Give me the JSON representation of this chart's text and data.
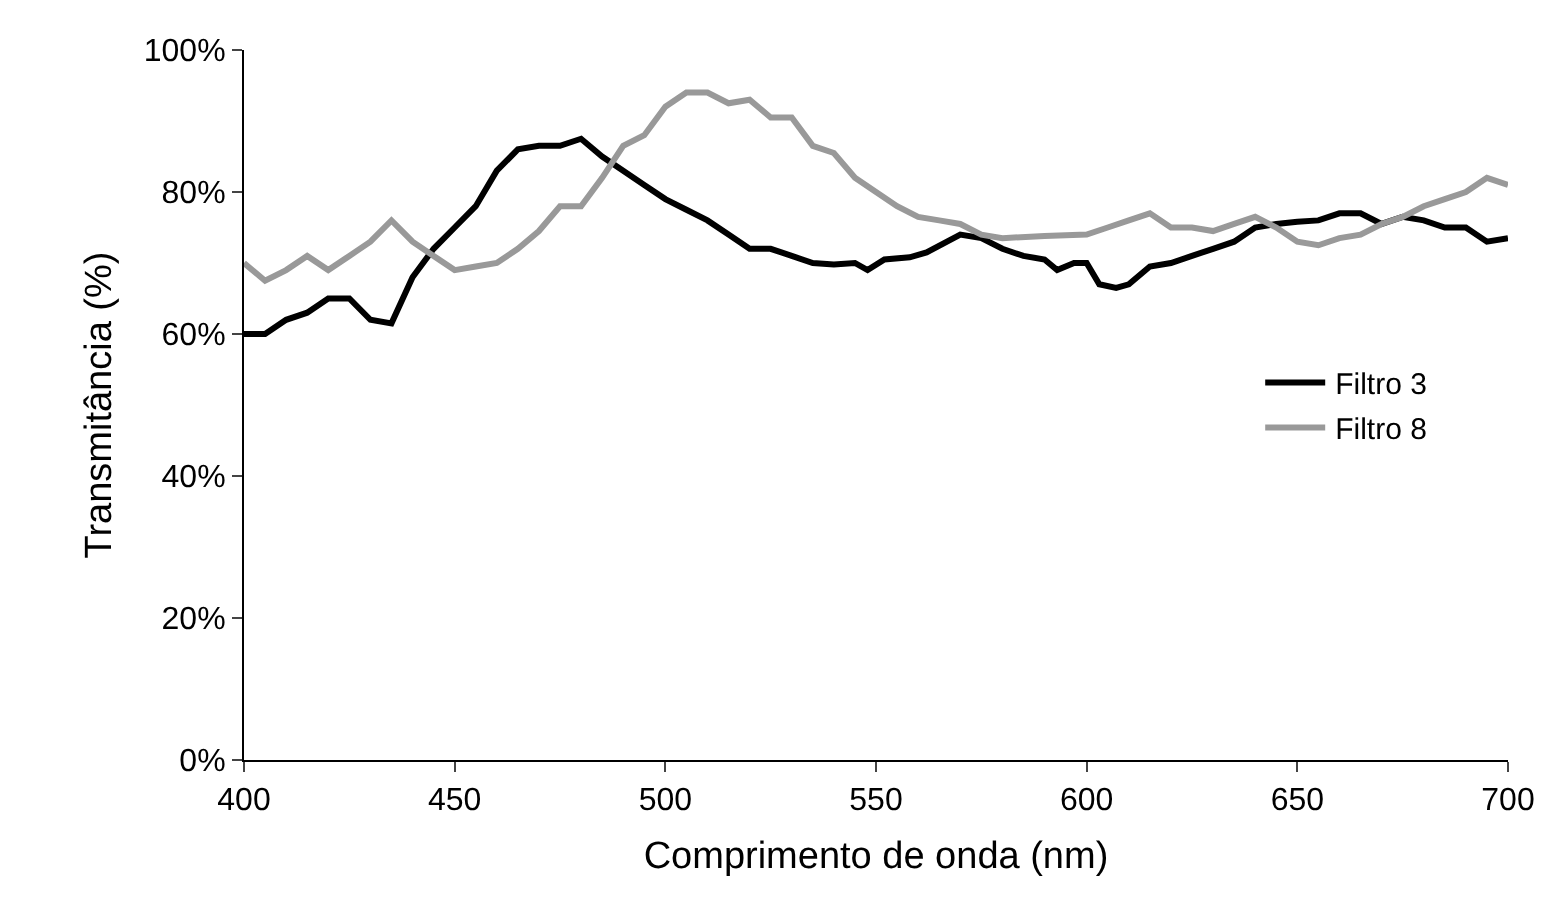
{
  "chart_data": {
    "type": "line",
    "xlabel": "Comprimento de onda (nm)",
    "ylabel": "Transmitância (%)",
    "xlim": [
      400,
      700
    ],
    "xticks": [
      400,
      450,
      500,
      550,
      600,
      650,
      700
    ],
    "ylim": [
      0,
      100
    ],
    "yticks": [
      {
        "value": 0,
        "label": "0%"
      },
      {
        "value": 20,
        "label": "20%"
      },
      {
        "value": 40,
        "label": "40%"
      },
      {
        "value": 60,
        "label": "60%"
      },
      {
        "value": 80,
        "label": "80%"
      },
      {
        "value": 100,
        "label": "100%"
      }
    ],
    "grid": false,
    "legend": "right",
    "marker": "none",
    "line_style": "solid",
    "series": [
      {
        "name": "Filtro 3",
        "color": "#000000",
        "x": [
          400,
          405,
          410,
          415,
          420,
          425,
          430,
          435,
          440,
          445,
          450,
          455,
          460,
          465,
          470,
          475,
          480,
          485,
          490,
          495,
          500,
          505,
          510,
          515,
          520,
          525,
          530,
          535,
          540,
          545,
          548,
          552,
          558,
          562,
          570,
          575,
          580,
          585,
          590,
          593,
          597,
          600,
          603,
          607,
          610,
          615,
          620,
          625,
          630,
          635,
          640,
          645,
          650,
          655,
          660,
          665,
          670,
          675,
          680,
          685,
          690,
          695,
          700
        ],
        "values": [
          60,
          60,
          62,
          63,
          65,
          65,
          62,
          61.5,
          68,
          72,
          75,
          78,
          83,
          86,
          86.5,
          86.5,
          87.5,
          85,
          83,
          81,
          79,
          77.5,
          76,
          74,
          72,
          72,
          71,
          70,
          69.8,
          70,
          69,
          70.5,
          70.8,
          71.5,
          74,
          73.5,
          72,
          71,
          70.5,
          69,
          70,
          70,
          67,
          66.5,
          67,
          69.5,
          70,
          71,
          72,
          73,
          75,
          75.5,
          75.8,
          76,
          77,
          77,
          75.5,
          76.5,
          76,
          75,
          75,
          73,
          73.5
        ]
      },
      {
        "name": "Filtro 8",
        "color": "#999999",
        "x": [
          400,
          405,
          410,
          415,
          420,
          425,
          430,
          435,
          440,
          445,
          450,
          455,
          460,
          465,
          470,
          475,
          480,
          485,
          490,
          495,
          500,
          505,
          510,
          515,
          520,
          525,
          530,
          535,
          540,
          545,
          550,
          555,
          560,
          565,
          570,
          575,
          580,
          590,
          600,
          605,
          610,
          615,
          620,
          625,
          630,
          635,
          640,
          645,
          650,
          655,
          660,
          665,
          670,
          675,
          680,
          685,
          690,
          695,
          700
        ],
        "values": [
          70,
          67.5,
          69,
          71,
          69,
          71,
          73,
          76,
          73,
          71,
          69,
          69.5,
          70,
          72,
          74.5,
          78,
          78,
          82,
          86.5,
          88,
          92,
          94,
          94,
          92.5,
          93,
          90.5,
          90.5,
          86.5,
          85.5,
          82,
          80,
          78,
          76.5,
          76,
          75.5,
          74,
          73.5,
          73.8,
          74,
          75,
          76,
          77,
          75,
          75,
          74.5,
          75.5,
          76.5,
          75,
          73,
          72.5,
          73.5,
          74,
          75.5,
          76.5,
          78,
          79,
          80,
          82,
          81
        ]
      }
    ]
  }
}
